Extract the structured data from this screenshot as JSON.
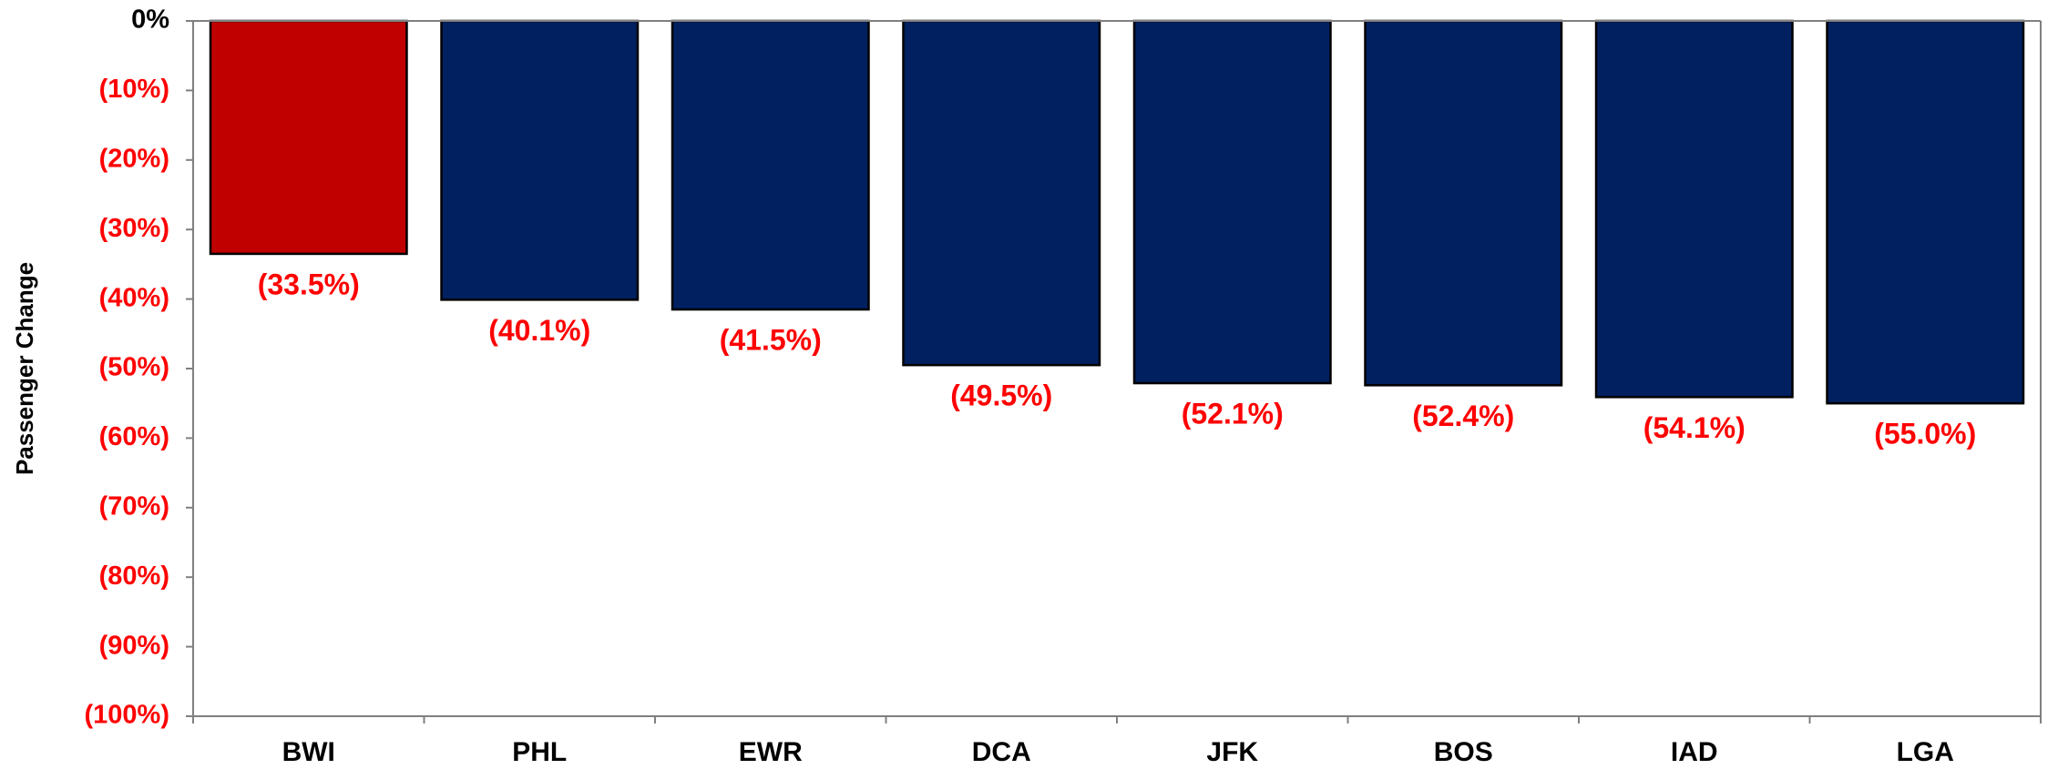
{
  "chart_data": {
    "type": "bar",
    "y_label": "Passenger Change",
    "categories": [
      "BWI",
      "PHL",
      "EWR",
      "DCA",
      "JFK",
      "BOS",
      "IAD",
      "LGA"
    ],
    "values": [
      -33.5,
      -40.1,
      -41.5,
      -49.5,
      -52.1,
      -52.4,
      -54.1,
      -55.0
    ],
    "value_labels": [
      "(33.5%)",
      "(40.1%)",
      "(41.5%)",
      "(49.5%)",
      "(52.1%)",
      "(52.4%)",
      "(54.1%)",
      "(55.0%)"
    ],
    "colors": [
      "#c00000",
      "#002060",
      "#002060",
      "#002060",
      "#002060",
      "#002060",
      "#002060",
      "#002060"
    ],
    "value_label_color": "#ff0000",
    "ylim": [
      -100,
      0
    ],
    "yticks": [
      {
        "value": 0,
        "label": "0%"
      },
      {
        "value": -10,
        "label": "(10%)"
      },
      {
        "value": -20,
        "label": "(20%)"
      },
      {
        "value": -30,
        "label": "(30%)"
      },
      {
        "value": -40,
        "label": "(40%)"
      },
      {
        "value": -50,
        "label": "(50%)"
      },
      {
        "value": -60,
        "label": "(60%)"
      },
      {
        "value": -70,
        "label": "(70%)"
      },
      {
        "value": -80,
        "label": "(80%)"
      },
      {
        "value": -90,
        "label": "(90%)"
      },
      {
        "value": -100,
        "label": "(100%)"
      }
    ],
    "grid": false
  }
}
